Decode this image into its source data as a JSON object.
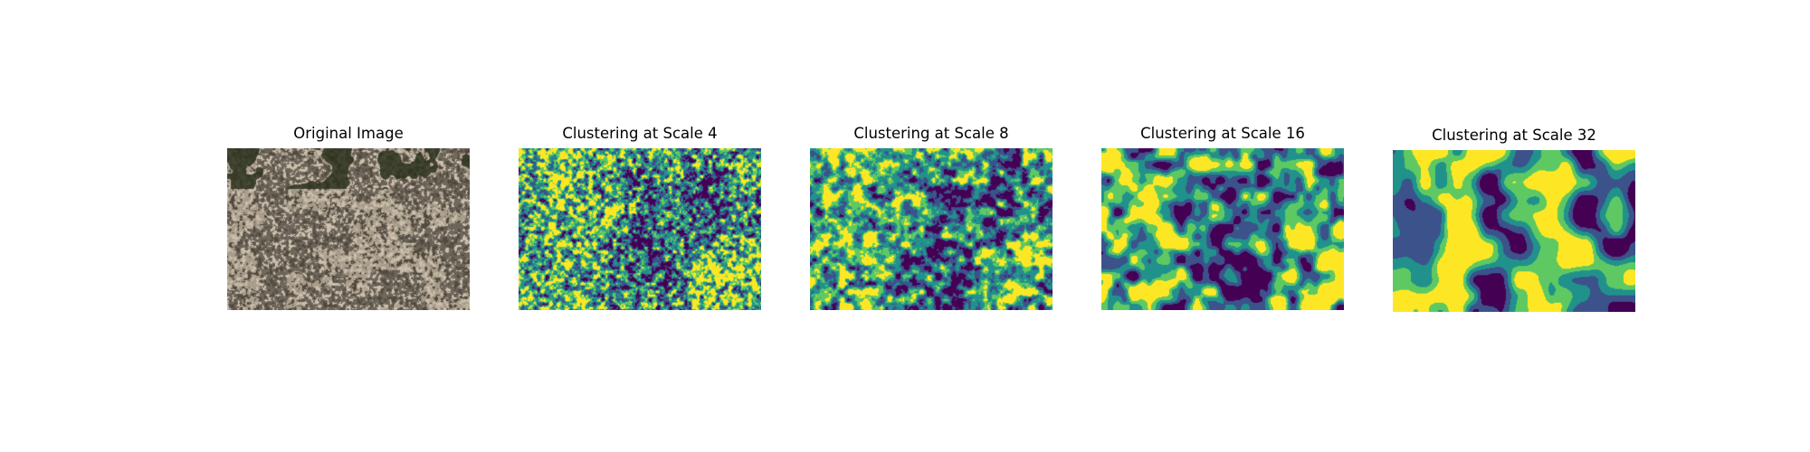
{
  "figure": {
    "panels": [
      {
        "title": "Original Image",
        "kind": "photo",
        "colors": [
          "#8f8577",
          "#6f675c",
          "#a89c8b",
          "#5a5347",
          "#c3b6a3",
          "#3b3f2c"
        ]
      },
      {
        "title": "Clustering at Scale 4",
        "kind": "segmentation",
        "scale": 4,
        "colors": [
          "#440154",
          "#3b528b",
          "#21918c",
          "#5ec962",
          "#fde725"
        ]
      },
      {
        "title": "Clustering at Scale 8",
        "kind": "segmentation",
        "scale": 8,
        "colors": [
          "#440154",
          "#3b528b",
          "#21918c",
          "#5ec962",
          "#fde725"
        ]
      },
      {
        "title": "Clustering at Scale 16",
        "kind": "segmentation",
        "scale": 16,
        "colors": [
          "#440154",
          "#3b528b",
          "#21918c",
          "#5ec962",
          "#fde725"
        ]
      },
      {
        "title": "Clustering at Scale 32",
        "kind": "segmentation",
        "scale": 32,
        "colors": [
          "#440154",
          "#3b528b",
          "#21918c",
          "#5ec962",
          "#fde725"
        ]
      }
    ]
  }
}
